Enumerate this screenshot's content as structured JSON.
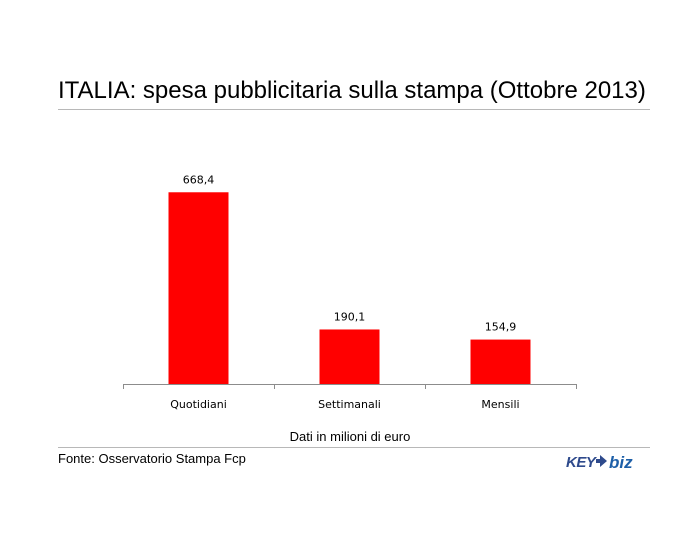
{
  "title": "ITALIA: spesa pubblicitaria sulla stampa (Ottobre 2013)",
  "caption": "Dati in milioni di euro",
  "source": "Fonte: Osservatorio Stampa Fcp",
  "logo": {
    "left_text": "KEY",
    "right_text": "biz",
    "colors": {
      "left": "#2e4a8c",
      "arrow": "#2e4a8c",
      "right": "#1d5fa8"
    }
  },
  "chart_data": {
    "type": "bar",
    "categories": [
      "Quotidiani",
      "Settimanali",
      "Mensili"
    ],
    "values": [
      668.4,
      190.1,
      154.9
    ],
    "value_labels": [
      "668,4",
      "190,1",
      "154,9"
    ],
    "ylim": [
      0,
      760
    ],
    "grid": false,
    "legend": "none",
    "bar_color": "#ff0000"
  }
}
